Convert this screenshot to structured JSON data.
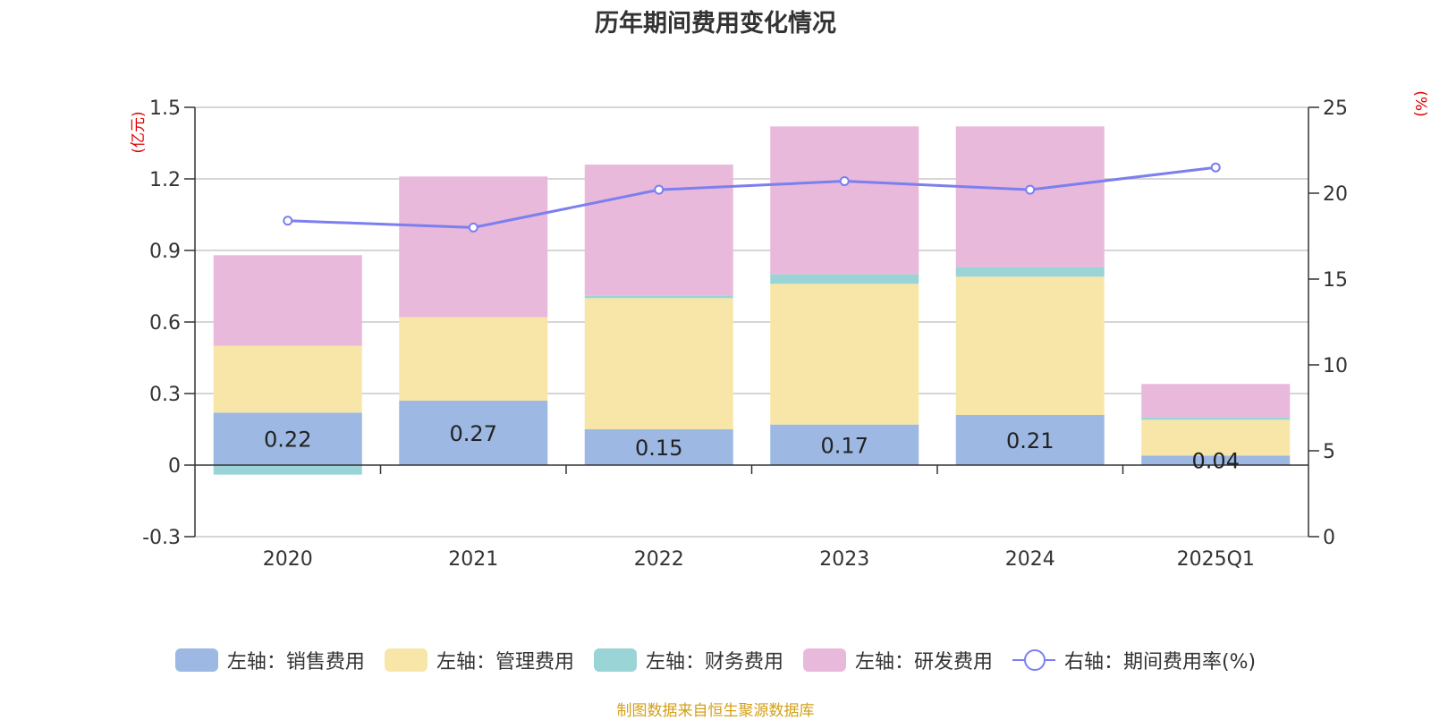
{
  "title": "历年期间费用变化情况",
  "source_note": "制图数据来自恒生聚源数据库",
  "chart_data": {
    "type": "bar",
    "categories": [
      "2020",
      "2021",
      "2022",
      "2023",
      "2024",
      "2025Q1"
    ],
    "left_axis": {
      "unit_label": "(亿元)",
      "min": -0.3,
      "max": 1.5,
      "ticks": [
        -0.3,
        0,
        0.3,
        0.6,
        0.9,
        1.2,
        1.5
      ],
      "tick_labels": [
        "-0.3",
        "0",
        "0.3",
        "0.6",
        "0.9",
        "1.2",
        "1.5"
      ]
    },
    "right_axis": {
      "unit_label": "(%)",
      "min": 0,
      "max": 25,
      "ticks": [
        0,
        5,
        10,
        15,
        20,
        25
      ],
      "tick_labels": [
        "0",
        "5",
        "10",
        "15",
        "20",
        "25"
      ]
    },
    "series": [
      {
        "name": "左轴：销售费用",
        "axis": "left",
        "type": "stacked-bar",
        "color": "#9cb8e3",
        "values": [
          0.22,
          0.27,
          0.15,
          0.17,
          0.21,
          0.04
        ],
        "data_labels": [
          "0.22",
          "0.27",
          "0.15",
          "0.17",
          "0.21",
          "0.04"
        ]
      },
      {
        "name": "左轴：管理费用",
        "axis": "left",
        "type": "stacked-bar",
        "color": "#f8e6a8",
        "values": [
          0.28,
          0.35,
          0.55,
          0.59,
          0.58,
          0.15
        ]
      },
      {
        "name": "左轴：财务费用",
        "axis": "left",
        "type": "stacked-bar",
        "color": "#9ad4d6",
        "values": [
          -0.04,
          0.0,
          0.01,
          0.04,
          0.04,
          0.01
        ]
      },
      {
        "name": "左轴：研发费用",
        "axis": "left",
        "type": "stacked-bar",
        "color": "#e8b9da",
        "values": [
          0.38,
          0.59,
          0.55,
          0.62,
          0.59,
          0.14
        ]
      },
      {
        "name": "右轴：期间费用率(%)",
        "axis": "right",
        "type": "line",
        "color": "#7b7fef",
        "values": [
          18.4,
          18.0,
          20.2,
          20.7,
          20.2,
          21.5
        ]
      }
    ],
    "grid": true,
    "legend_position": "bottom"
  }
}
